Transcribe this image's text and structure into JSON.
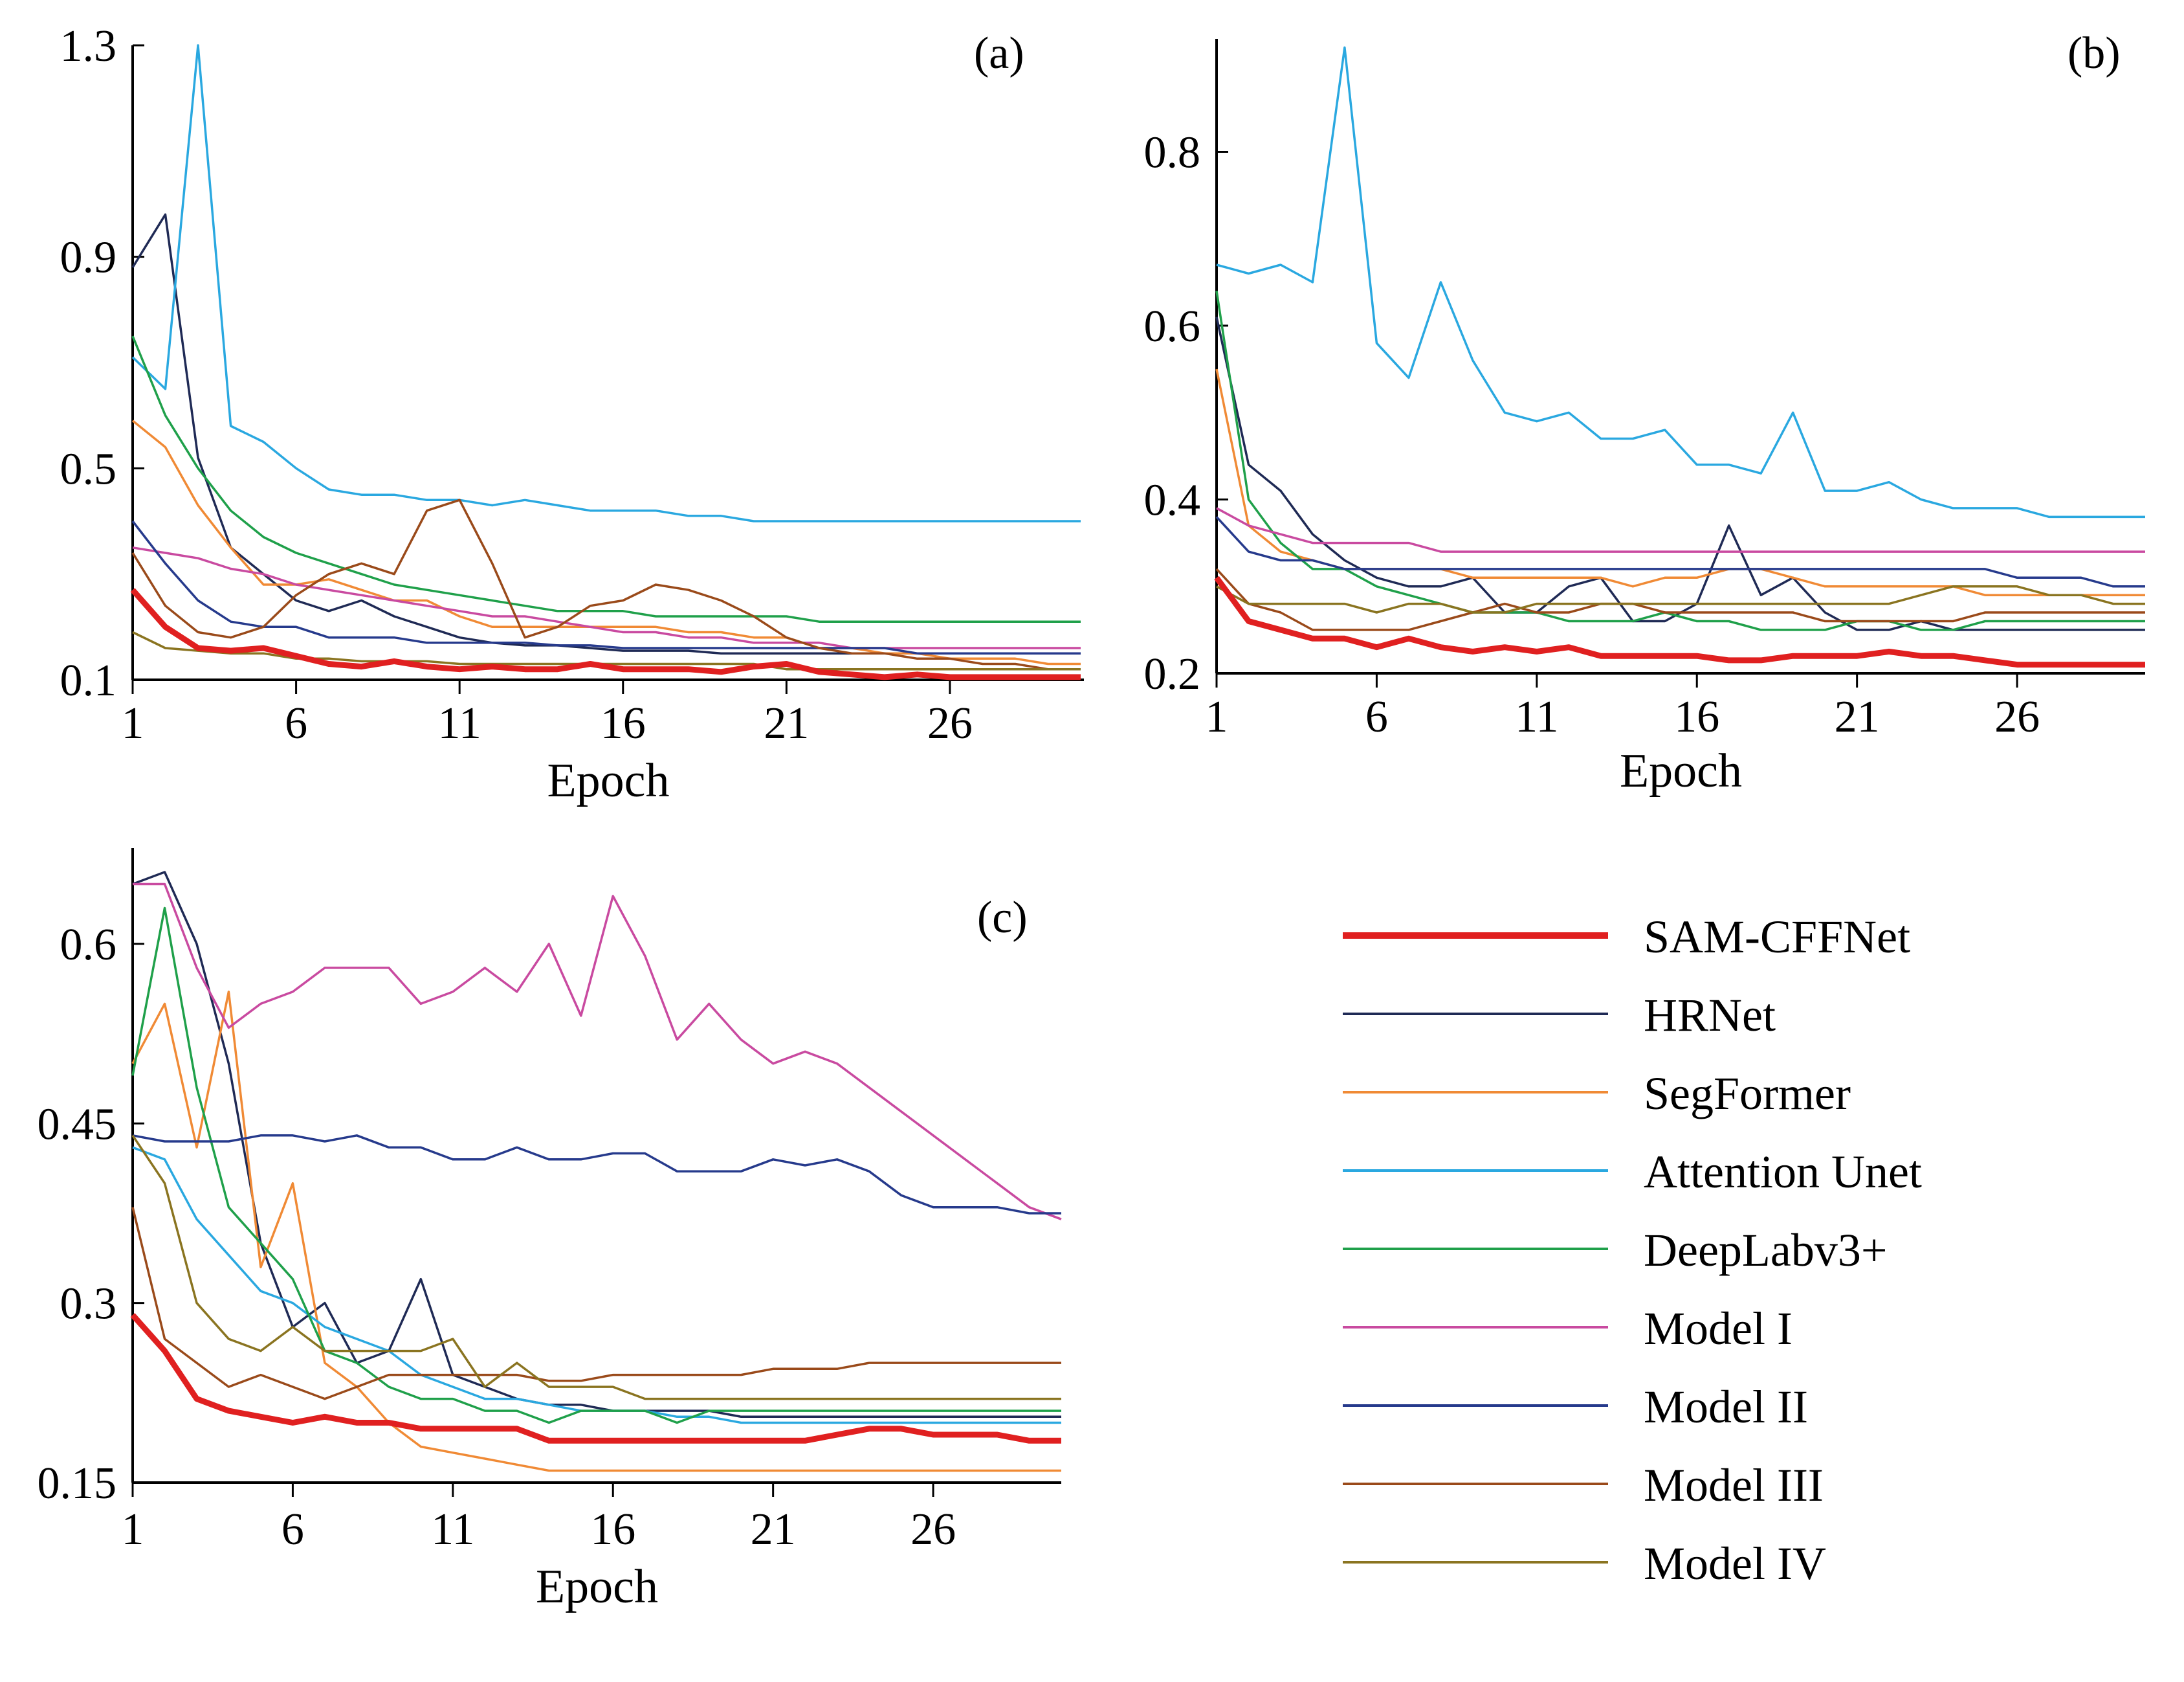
{
  "chart_data": [
    {
      "type": "line",
      "panel_label": "(a)",
      "xlabel": "Epoch",
      "ylabel": "",
      "xticks": [
        1,
        6,
        11,
        16,
        21,
        26
      ],
      "yticks": [
        "0.1",
        "0.5",
        "0.9",
        "1.3"
      ],
      "xlim": [
        1,
        30
      ],
      "ylim": [
        0.1,
        1.3
      ],
      "series": [
        {
          "name": "SAM-CFFNet",
          "values": [
            0.27,
            0.2,
            0.16,
            0.155,
            0.16,
            0.145,
            0.13,
            0.125,
            0.135,
            0.125,
            0.12,
            0.125,
            0.12,
            0.12,
            0.13,
            0.12,
            0.12,
            0.12,
            0.115,
            0.125,
            0.13,
            0.115,
            0.11,
            0.105,
            0.11,
            0.105,
            0.105,
            0.105,
            0.105,
            0.105
          ]
        },
        {
          "name": "HRNet",
          "values": [
            0.88,
            0.98,
            0.52,
            0.35,
            0.3,
            0.25,
            0.23,
            0.25,
            0.22,
            0.2,
            0.18,
            0.17,
            0.165,
            0.165,
            0.16,
            0.155,
            0.155,
            0.155,
            0.15,
            0.15,
            0.15,
            0.15,
            0.15,
            0.15,
            0.15,
            0.15,
            0.15,
            0.15,
            0.15,
            0.15
          ]
        },
        {
          "name": "SegFormer",
          "values": [
            0.59,
            0.54,
            0.43,
            0.35,
            0.28,
            0.28,
            0.29,
            0.27,
            0.25,
            0.25,
            0.22,
            0.2,
            0.2,
            0.2,
            0.2,
            0.2,
            0.2,
            0.19,
            0.19,
            0.18,
            0.18,
            0.16,
            0.16,
            0.15,
            0.15,
            0.14,
            0.14,
            0.14,
            0.13,
            0.13
          ]
        },
        {
          "name": "Attention Unet",
          "values": [
            0.71,
            0.65,
            1.3,
            0.58,
            0.55,
            0.5,
            0.46,
            0.45,
            0.45,
            0.44,
            0.44,
            0.43,
            0.44,
            0.43,
            0.42,
            0.42,
            0.42,
            0.41,
            0.41,
            0.4,
            0.4,
            0.4,
            0.4,
            0.4,
            0.4,
            0.4,
            0.4,
            0.4,
            0.4,
            0.4
          ]
        },
        {
          "name": "DeepLabv3+",
          "values": [
            0.75,
            0.6,
            0.5,
            0.42,
            0.37,
            0.34,
            0.32,
            0.3,
            0.28,
            0.27,
            0.26,
            0.25,
            0.24,
            0.23,
            0.23,
            0.23,
            0.22,
            0.22,
            0.22,
            0.22,
            0.22,
            0.21,
            0.21,
            0.21,
            0.21,
            0.21,
            0.21,
            0.21,
            0.21,
            0.21
          ]
        },
        {
          "name": "Model I",
          "values": [
            0.35,
            0.34,
            0.33,
            0.31,
            0.3,
            0.28,
            0.27,
            0.26,
            0.25,
            0.24,
            0.23,
            0.22,
            0.22,
            0.21,
            0.2,
            0.19,
            0.19,
            0.18,
            0.18,
            0.17,
            0.17,
            0.17,
            0.16,
            0.16,
            0.16,
            0.16,
            0.16,
            0.16,
            0.16,
            0.16
          ]
        },
        {
          "name": "Model II",
          "values": [
            0.4,
            0.32,
            0.25,
            0.21,
            0.2,
            0.2,
            0.18,
            0.18,
            0.18,
            0.17,
            0.17,
            0.17,
            0.17,
            0.165,
            0.165,
            0.16,
            0.16,
            0.16,
            0.16,
            0.16,
            0.16,
            0.16,
            0.16,
            0.16,
            0.15,
            0.15,
            0.15,
            0.15,
            0.15,
            0.15
          ]
        },
        {
          "name": "Model III",
          "values": [
            0.34,
            0.24,
            0.19,
            0.18,
            0.2,
            0.26,
            0.3,
            0.32,
            0.3,
            0.42,
            0.44,
            0.32,
            0.18,
            0.2,
            0.24,
            0.25,
            0.28,
            0.27,
            0.25,
            0.22,
            0.18,
            0.16,
            0.15,
            0.15,
            0.14,
            0.14,
            0.13,
            0.13,
            0.12,
            0.12
          ]
        },
        {
          "name": "Model IV",
          "values": [
            0.19,
            0.16,
            0.155,
            0.15,
            0.15,
            0.14,
            0.14,
            0.135,
            0.135,
            0.135,
            0.13,
            0.13,
            0.13,
            0.13,
            0.13,
            0.13,
            0.13,
            0.13,
            0.13,
            0.13,
            0.12,
            0.12,
            0.12,
            0.12,
            0.12,
            0.12,
            0.12,
            0.12,
            0.12,
            0.12
          ]
        }
      ]
    },
    {
      "type": "line",
      "panel_label": "(b)",
      "xlabel": "Epoch",
      "ylabel": "",
      "xticks": [
        1,
        6,
        11,
        16,
        21,
        26
      ],
      "yticks": [
        "0.2",
        "0.4",
        "0.6",
        "0.8"
      ],
      "xlim": [
        1,
        30
      ],
      "ylim": [
        0.2,
        0.93
      ],
      "series": [
        {
          "name": "SAM-CFFNet",
          "values": [
            0.31,
            0.26,
            0.25,
            0.24,
            0.24,
            0.23,
            0.24,
            0.23,
            0.225,
            0.23,
            0.225,
            0.23,
            0.22,
            0.22,
            0.22,
            0.22,
            0.215,
            0.215,
            0.22,
            0.22,
            0.22,
            0.225,
            0.22,
            0.22,
            0.215,
            0.21,
            0.21,
            0.21,
            0.21,
            0.21
          ]
        },
        {
          "name": "HRNet",
          "values": [
            0.61,
            0.44,
            0.41,
            0.36,
            0.33,
            0.31,
            0.3,
            0.3,
            0.31,
            0.27,
            0.27,
            0.3,
            0.31,
            0.26,
            0.26,
            0.28,
            0.37,
            0.29,
            0.31,
            0.27,
            0.25,
            0.25,
            0.26,
            0.25,
            0.25,
            0.25,
            0.25,
            0.25,
            0.25,
            0.25
          ]
        },
        {
          "name": "SegFormer",
          "values": [
            0.55,
            0.37,
            0.34,
            0.33,
            0.32,
            0.32,
            0.32,
            0.32,
            0.31,
            0.31,
            0.31,
            0.31,
            0.31,
            0.3,
            0.31,
            0.31,
            0.32,
            0.32,
            0.31,
            0.3,
            0.3,
            0.3,
            0.3,
            0.3,
            0.29,
            0.29,
            0.29,
            0.29,
            0.29,
            0.29
          ]
        },
        {
          "name": "Attention Unet",
          "values": [
            0.67,
            0.66,
            0.67,
            0.65,
            0.92,
            0.58,
            0.54,
            0.65,
            0.56,
            0.5,
            0.49,
            0.5,
            0.47,
            0.47,
            0.48,
            0.44,
            0.44,
            0.43,
            0.5,
            0.41,
            0.41,
            0.42,
            0.4,
            0.39,
            0.39,
            0.39,
            0.38,
            0.38,
            0.38,
            0.38
          ]
        },
        {
          "name": "DeepLabv3+",
          "values": [
            0.64,
            0.4,
            0.35,
            0.32,
            0.32,
            0.3,
            0.29,
            0.28,
            0.27,
            0.27,
            0.27,
            0.26,
            0.26,
            0.26,
            0.27,
            0.26,
            0.26,
            0.25,
            0.25,
            0.25,
            0.26,
            0.26,
            0.25,
            0.25,
            0.26,
            0.26,
            0.26,
            0.26,
            0.26,
            0.26
          ]
        },
        {
          "name": "Model I",
          "values": [
            0.39,
            0.37,
            0.36,
            0.35,
            0.35,
            0.35,
            0.35,
            0.34,
            0.34,
            0.34,
            0.34,
            0.34,
            0.34,
            0.34,
            0.34,
            0.34,
            0.34,
            0.34,
            0.34,
            0.34,
            0.34,
            0.34,
            0.34,
            0.34,
            0.34,
            0.34,
            0.34,
            0.34,
            0.34,
            0.34
          ]
        },
        {
          "name": "Model II",
          "values": [
            0.38,
            0.34,
            0.33,
            0.33,
            0.32,
            0.32,
            0.32,
            0.32,
            0.32,
            0.32,
            0.32,
            0.32,
            0.32,
            0.32,
            0.32,
            0.32,
            0.32,
            0.32,
            0.32,
            0.32,
            0.32,
            0.32,
            0.32,
            0.32,
            0.32,
            0.31,
            0.31,
            0.31,
            0.3,
            0.3
          ]
        },
        {
          "name": "Model III",
          "values": [
            0.32,
            0.28,
            0.27,
            0.25,
            0.25,
            0.25,
            0.25,
            0.26,
            0.27,
            0.28,
            0.27,
            0.27,
            0.28,
            0.28,
            0.27,
            0.27,
            0.27,
            0.27,
            0.27,
            0.26,
            0.26,
            0.26,
            0.26,
            0.26,
            0.27,
            0.27,
            0.27,
            0.27,
            0.27,
            0.27
          ]
        },
        {
          "name": "Model IV",
          "values": [
            0.3,
            0.28,
            0.28,
            0.28,
            0.28,
            0.27,
            0.28,
            0.28,
            0.27,
            0.27,
            0.28,
            0.28,
            0.28,
            0.28,
            0.28,
            0.28,
            0.28,
            0.28,
            0.28,
            0.28,
            0.28,
            0.28,
            0.29,
            0.3,
            0.3,
            0.3,
            0.29,
            0.29,
            0.28,
            0.28
          ]
        }
      ]
    },
    {
      "type": "line",
      "panel_label": "(c)",
      "xlabel": "Epoch",
      "ylabel": "",
      "xticks": [
        1,
        6,
        11,
        16,
        21,
        26
      ],
      "yticks": [
        "0.15",
        "0.3",
        "0.45",
        "0.6"
      ],
      "xlim": [
        1,
        30
      ],
      "ylim": [
        0.15,
        0.68
      ],
      "series": [
        {
          "name": "SAM-CFFNet",
          "values": [
            0.29,
            0.26,
            0.22,
            0.21,
            0.205,
            0.2,
            0.205,
            0.2,
            0.2,
            0.195,
            0.195,
            0.195,
            0.195,
            0.185,
            0.185,
            0.185,
            0.185,
            0.185,
            0.185,
            0.185,
            0.185,
            0.185,
            0.19,
            0.195,
            0.195,
            0.19,
            0.19,
            0.19,
            0.185,
            0.185
          ]
        },
        {
          "name": "HRNet",
          "values": [
            0.65,
            0.66,
            0.6,
            0.5,
            0.35,
            0.28,
            0.3,
            0.25,
            0.26,
            0.32,
            0.24,
            0.23,
            0.22,
            0.215,
            0.215,
            0.21,
            0.21,
            0.21,
            0.21,
            0.205,
            0.205,
            0.205,
            0.205,
            0.205,
            0.205,
            0.205,
            0.205,
            0.205,
            0.205,
            0.205
          ]
        },
        {
          "name": "SegFormer",
          "values": [
            0.5,
            0.55,
            0.43,
            0.56,
            0.33,
            0.4,
            0.25,
            0.23,
            0.2,
            0.18,
            0.175,
            0.17,
            0.165,
            0.16,
            0.16,
            0.16,
            0.16,
            0.16,
            0.16,
            0.16,
            0.16,
            0.16,
            0.16,
            0.16,
            0.16,
            0.16,
            0.16,
            0.16,
            0.16,
            0.16
          ]
        },
        {
          "name": "Attention Unet",
          "values": [
            0.43,
            0.42,
            0.37,
            0.34,
            0.31,
            0.3,
            0.28,
            0.27,
            0.26,
            0.24,
            0.23,
            0.22,
            0.22,
            0.215,
            0.21,
            0.21,
            0.21,
            0.205,
            0.205,
            0.2,
            0.2,
            0.2,
            0.2,
            0.2,
            0.2,
            0.2,
            0.2,
            0.2,
            0.2,
            0.2
          ]
        },
        {
          "name": "DeepLabv3+",
          "values": [
            0.49,
            0.63,
            0.48,
            0.38,
            0.35,
            0.32,
            0.26,
            0.25,
            0.23,
            0.22,
            0.22,
            0.21,
            0.21,
            0.2,
            0.21,
            0.21,
            0.21,
            0.2,
            0.21,
            0.21,
            0.21,
            0.21,
            0.21,
            0.21,
            0.21,
            0.21,
            0.21,
            0.21,
            0.21,
            0.21
          ]
        },
        {
          "name": "Model I",
          "values": [
            0.65,
            0.65,
            0.58,
            0.53,
            0.55,
            0.56,
            0.58,
            0.58,
            0.58,
            0.55,
            0.56,
            0.58,
            0.56,
            0.6,
            0.54,
            0.64,
            0.59,
            0.52,
            0.55,
            0.52,
            0.5,
            0.51,
            0.5,
            0.48,
            0.46,
            0.44,
            0.42,
            0.4,
            0.38,
            0.37
          ]
        },
        {
          "name": "Model II",
          "values": [
            0.44,
            0.435,
            0.435,
            0.435,
            0.44,
            0.44,
            0.435,
            0.44,
            0.43,
            0.43,
            0.42,
            0.42,
            0.43,
            0.42,
            0.42,
            0.425,
            0.425,
            0.41,
            0.41,
            0.41,
            0.42,
            0.415,
            0.42,
            0.41,
            0.39,
            0.38,
            0.38,
            0.38,
            0.375,
            0.375
          ]
        },
        {
          "name": "Model III",
          "values": [
            0.38,
            0.27,
            0.25,
            0.23,
            0.24,
            0.23,
            0.22,
            0.23,
            0.24,
            0.24,
            0.24,
            0.24,
            0.24,
            0.235,
            0.235,
            0.24,
            0.24,
            0.24,
            0.24,
            0.24,
            0.245,
            0.245,
            0.245,
            0.25,
            0.25,
            0.25,
            0.25,
            0.25,
            0.25,
            0.25
          ]
        },
        {
          "name": "Model IV",
          "values": [
            0.44,
            0.4,
            0.3,
            0.27,
            0.26,
            0.28,
            0.26,
            0.26,
            0.26,
            0.26,
            0.27,
            0.23,
            0.25,
            0.23,
            0.23,
            0.23,
            0.22,
            0.22,
            0.22,
            0.22,
            0.22,
            0.22,
            0.22,
            0.22,
            0.22,
            0.22,
            0.22,
            0.22,
            0.22,
            0.22
          ]
        }
      ]
    }
  ],
  "legend": {
    "placement": "bottom-right",
    "entries": [
      {
        "name": "SAM-CFFNet",
        "color": "#e02020",
        "bold": true
      },
      {
        "name": "HRNet",
        "color": "#1f2a55"
      },
      {
        "name": "SegFormer",
        "color": "#f08a35"
      },
      {
        "name": "Attention Unet",
        "color": "#2aa8e0"
      },
      {
        "name": "DeepLabv3+",
        "color": "#1fa04a"
      },
      {
        "name": "Model I",
        "color": "#c94aa0"
      },
      {
        "name": "Model II",
        "color": "#263a8c"
      },
      {
        "name": "Model III",
        "color": "#9a4a1a"
      },
      {
        "name": "Model IV",
        "color": "#8a7420"
      }
    ]
  }
}
